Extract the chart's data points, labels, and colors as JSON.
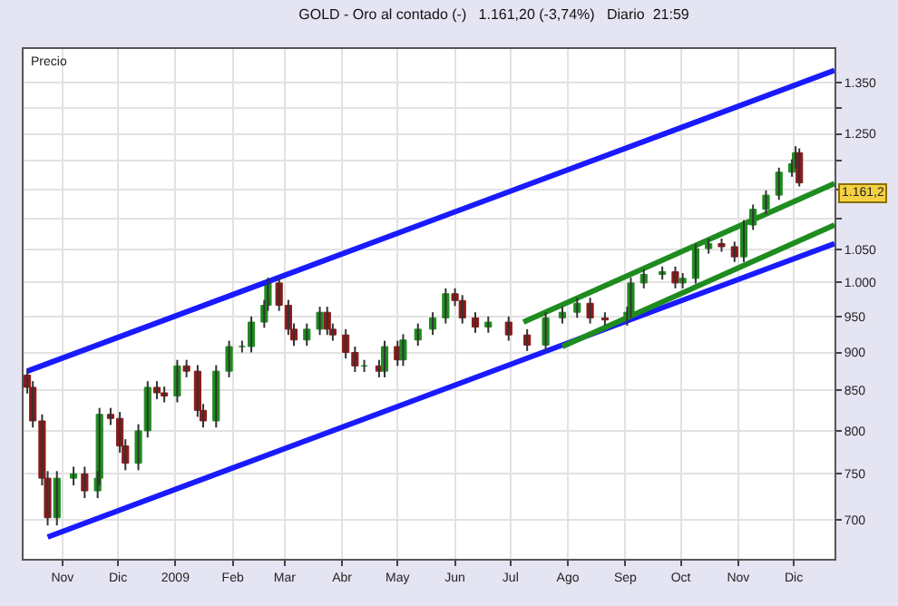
{
  "chart_data": {
    "type": "candlestick",
    "title": "GOLD - Oro al contado (-)   1.161,20 (-3,74%)   Diario  21:59",
    "ylabel": "Precio",
    "x": [
      "2008-10-13",
      "2008-10-16",
      "2008-10-21",
      "2008-10-24",
      "2008-10-29",
      "2008-11-07",
      "2008-11-13",
      "2008-11-20",
      "2008-11-21",
      "2008-11-27",
      "2008-12-02",
      "2008-12-05",
      "2008-12-12",
      "2008-12-17",
      "2008-12-22",
      "2008-12-26",
      "2009-01-02",
      "2009-01-07",
      "2009-01-13",
      "2009-01-16",
      "2009-01-23",
      "2009-01-30",
      "2009-02-06",
      "2009-02-11",
      "2009-02-18",
      "2009-02-20",
      "2009-02-26",
      "2009-03-03",
      "2009-03-06",
      "2009-03-13",
      "2009-03-20",
      "2009-03-24",
      "2009-03-27",
      "2009-04-03",
      "2009-04-08",
      "2009-04-13",
      "2009-04-21",
      "2009-04-24",
      "2009-05-01",
      "2009-05-04",
      "2009-05-12",
      "2009-05-20",
      "2009-05-27",
      "2009-06-01",
      "2009-06-05",
      "2009-06-12",
      "2009-06-19",
      "2009-06-30",
      "2009-07-10",
      "2009-07-20",
      "2009-07-29",
      "2009-08-06",
      "2009-08-13",
      "2009-08-21",
      "2009-09-02",
      "2009-09-04",
      "2009-09-11",
      "2009-09-21",
      "2009-09-28",
      "2009-10-02",
      "2009-10-09",
      "2009-10-16",
      "2009-10-23",
      "2009-10-30",
      "2009-11-04",
      "2009-11-09",
      "2009-11-16",
      "2009-11-23",
      "2009-11-30",
      "2009-12-02",
      "2009-12-04"
    ],
    "ohlc": [
      [
        870,
        878,
        846,
        854
      ],
      [
        854,
        862,
        804,
        812
      ],
      [
        812,
        820,
        737,
        745
      ],
      [
        745,
        753,
        694,
        702
      ],
      [
        702,
        753,
        694,
        745
      ],
      [
        745,
        758,
        737,
        750
      ],
      [
        750,
        758,
        723,
        731
      ],
      [
        731,
        753,
        723,
        745
      ],
      [
        745,
        828,
        737,
        820
      ],
      [
        820,
        828,
        807,
        815
      ],
      [
        815,
        823,
        774,
        782
      ],
      [
        782,
        790,
        754,
        762
      ],
      [
        762,
        808,
        754,
        800
      ],
      [
        800,
        862,
        792,
        854
      ],
      [
        854,
        862,
        839,
        847
      ],
      [
        847,
        855,
        835,
        843
      ],
      [
        843,
        890,
        835,
        882
      ],
      [
        882,
        890,
        867,
        875
      ],
      [
        875,
        883,
        817,
        825
      ],
      [
        825,
        833,
        804,
        812
      ],
      [
        812,
        883,
        804,
        875
      ],
      [
        875,
        916,
        867,
        908
      ],
      [
        908,
        916,
        900,
        908
      ],
      [
        908,
        950,
        900,
        942
      ],
      [
        942,
        974,
        934,
        966
      ],
      [
        966,
        1007,
        958,
        999
      ],
      [
        999,
        1007,
        958,
        966
      ],
      [
        966,
        974,
        924,
        932
      ],
      [
        932,
        940,
        909,
        917
      ],
      [
        917,
        940,
        909,
        932
      ],
      [
        932,
        964,
        924,
        956
      ],
      [
        956,
        964,
        924,
        932
      ],
      [
        932,
        940,
        916,
        924
      ],
      [
        924,
        932,
        892,
        900
      ],
      [
        900,
        908,
        874,
        882
      ],
      [
        882,
        890,
        874,
        882
      ],
      [
        882,
        890,
        867,
        875
      ],
      [
        875,
        916,
        867,
        908
      ],
      [
        908,
        916,
        882,
        890
      ],
      [
        890,
        925,
        882,
        917
      ],
      [
        917,
        940,
        909,
        932
      ],
      [
        932,
        956,
        924,
        948
      ],
      [
        948,
        991,
        940,
        983
      ],
      [
        983,
        991,
        965,
        973
      ],
      [
        973,
        981,
        940,
        948
      ],
      [
        948,
        956,
        927,
        935
      ],
      [
        935,
        950,
        927,
        942
      ],
      [
        942,
        950,
        916,
        924
      ],
      [
        924,
        932,
        902,
        910
      ],
      [
        910,
        956,
        902,
        948
      ],
      [
        948,
        964,
        940,
        956
      ],
      [
        956,
        977,
        948,
        969
      ],
      [
        969,
        977,
        940,
        948
      ],
      [
        948,
        956,
        937,
        945
      ],
      [
        945,
        964,
        937,
        956
      ],
      [
        956,
        1007,
        948,
        999
      ],
      [
        999,
        1020,
        991,
        1012
      ],
      [
        1012,
        1024,
        1004,
        1016
      ],
      [
        1016,
        1024,
        991,
        999
      ],
      [
        999,
        1014,
        991,
        1006
      ],
      [
        1006,
        1060,
        998,
        1052
      ],
      [
        1052,
        1068,
        1044,
        1060
      ],
      [
        1060,
        1068,
        1047,
        1055
      ],
      [
        1055,
        1063,
        1031,
        1039
      ],
      [
        1039,
        1098,
        1031,
        1090
      ],
      [
        1090,
        1124,
        1082,
        1116
      ],
      [
        1116,
        1148,
        1108,
        1140
      ],
      [
        1140,
        1188,
        1132,
        1180
      ],
      [
        1180,
        1203,
        1172,
        1195
      ],
      [
        1195,
        1227,
        1187,
        1215
      ],
      [
        1215,
        1223,
        1155,
        1161.2
      ]
    ],
    "series": [
      {
        "type": "line",
        "color": "#1a1aff",
        "x": [
          "2008-10-13",
          "2009-12-23"
        ],
        "values": [
          875,
          1375
        ]
      },
      {
        "type": "line",
        "color": "#1a1aff",
        "x": [
          "2008-10-24",
          "2009-12-23"
        ],
        "values": [
          682,
          1060
        ]
      },
      {
        "type": "line",
        "color": "#1e8c1e",
        "x": [
          "2009-07-08",
          "2009-12-23"
        ],
        "values": [
          942,
          1160
        ]
      },
      {
        "type": "line",
        "color": "#1e8c1e",
        "x": [
          "2009-07-29",
          "2009-12-23"
        ],
        "values": [
          908,
          1090
        ]
      }
    ],
    "annotations": [
      "1.161,2"
    ],
    "log": true,
    "xlim": [
      "2008-10-11",
      "2009-12-23"
    ],
    "xticks": [
      {
        "value": "2008-11-01",
        "label": "Nov"
      },
      {
        "value": "2008-12-01",
        "label": "Dic"
      },
      {
        "value": "2009-01-01",
        "label": "2009"
      },
      {
        "value": "2009-02-01",
        "label": "Feb"
      },
      {
        "value": "2009-03-01",
        "label": "Mar"
      },
      {
        "value": "2009-04-01",
        "label": "Abr"
      },
      {
        "value": "2009-05-01",
        "label": "May"
      },
      {
        "value": "2009-06-01",
        "label": "Jun"
      },
      {
        "value": "2009-07-01",
        "label": "Jul"
      },
      {
        "value": "2009-08-01",
        "label": "Ago"
      },
      {
        "value": "2009-09-01",
        "label": "Sep"
      },
      {
        "value": "2009-10-01",
        "label": "Oct"
      },
      {
        "value": "2009-11-01",
        "label": "Nov"
      },
      {
        "value": "2009-12-01",
        "label": "Dic"
      }
    ],
    "ylim": [
      660,
      1420
    ],
    "yticks": [
      700,
      750,
      800,
      850,
      900,
      950,
      {
        "value": 1000,
        "label": "1.000"
      },
      {
        "value": 1050,
        "label": "1.050"
      },
      {
        "value": 1100,
        "label": null
      },
      {
        "value": 1150,
        "label": null
      },
      {
        "value": 1200,
        "label": null
      },
      {
        "value": 1250,
        "label": "1.250"
      },
      {
        "value": 1300,
        "label": null
      },
      {
        "value": 1350,
        "label": "1.350"
      }
    ],
    "grid": true
  }
}
